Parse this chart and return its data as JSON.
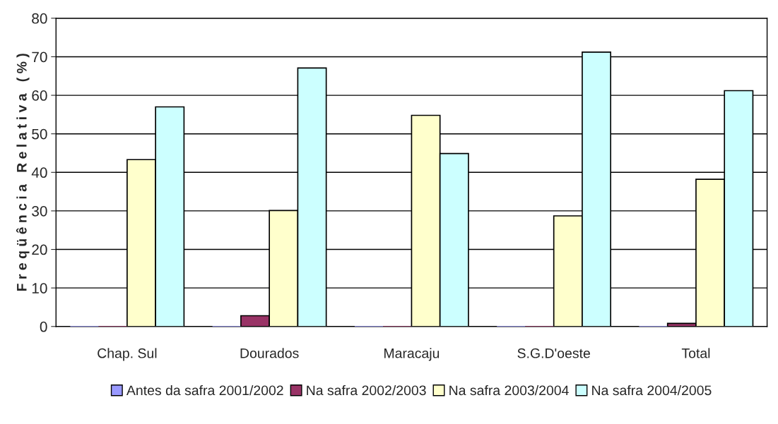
{
  "chart_data": {
    "type": "bar",
    "ylabel": "F r e q ü ê n c i a   R e l a t i v a   ( % )",
    "categories": [
      "Chap. Sul",
      "Dourados",
      "Maracaju",
      "S.G.D'oeste",
      "Total"
    ],
    "series": [
      {
        "name": "Antes da safra 2001/2002",
        "color": "#9999ff",
        "values": [
          0,
          0,
          0,
          0,
          0
        ]
      },
      {
        "name": "Na safra 2002/2003",
        "color": "#993366",
        "values": [
          0,
          2.8,
          0,
          0,
          0.8
        ]
      },
      {
        "name": "Na safra 2003/2004",
        "color": "#ffffcc",
        "values": [
          43.3,
          30.1,
          54.8,
          28.7,
          38.2
        ]
      },
      {
        "name": "Na safra 2004/2005",
        "color": "#ccffff",
        "values": [
          57.0,
          67.1,
          44.9,
          71.2,
          61.2
        ]
      }
    ],
    "ylim": [
      0,
      80
    ],
    "yticks": [
      0,
      10,
      20,
      30,
      40,
      50,
      60,
      70,
      80
    ],
    "grid": "y",
    "legend": "bottom"
  }
}
